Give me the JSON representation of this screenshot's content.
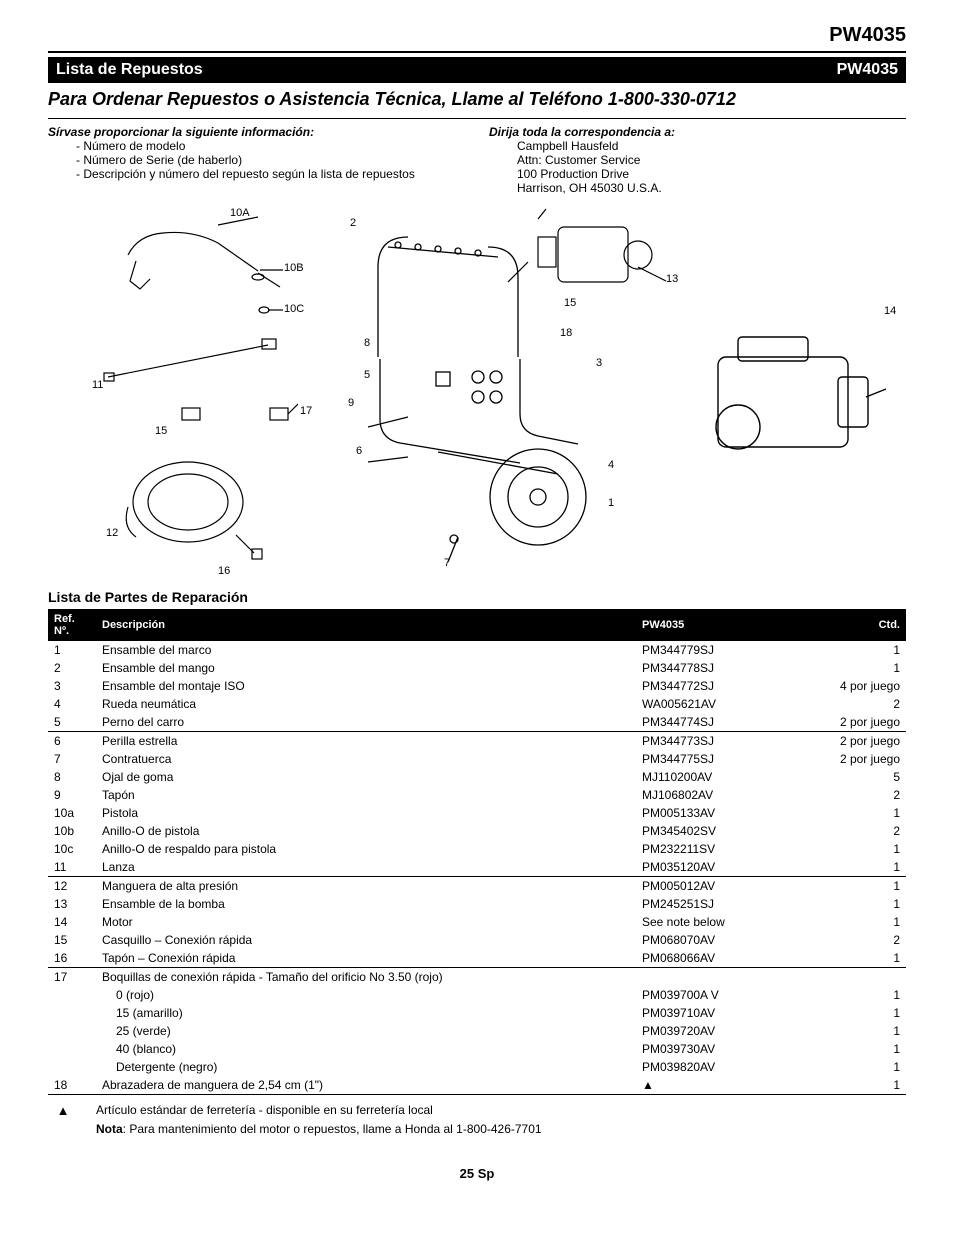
{
  "header": {
    "model": "PW4035"
  },
  "sectionbar": {
    "left": "Lista de Repuestos",
    "right": "PW4035"
  },
  "orderline": "Para Ordenar Repuestos o Asistencia Técnica, Llame al Teléfono 1-800-330-0712",
  "info": {
    "left_lead": "Sírvase proporcionar la siguiente información:",
    "left_items": [
      "- Número de modelo",
      "- Número de Serie (de haberlo)",
      "- Descripción y número del repuesto según la lista de repuestos"
    ],
    "right_lead": "Dirija toda la correspondencia a:",
    "right_items": [
      "Campbell Hausfeld",
      "Attn: Customer Service",
      "100 Production Drive",
      "Harrison, OH   45030   U.S.A."
    ]
  },
  "diagram_labels": {
    "l10A": "10A",
    "l10B": "10B",
    "l10C": "10C",
    "l11": "11",
    "l15a": "15",
    "l12": "12",
    "l16": "16",
    "l17": "17",
    "l2": "2",
    "l8": "8",
    "l5": "5",
    "l9": "9",
    "l6": "6",
    "l7": "7",
    "l3": "3",
    "l4": "4",
    "l1": "1",
    "l18": "18",
    "l15b": "15",
    "l13": "13",
    "l14": "14"
  },
  "table": {
    "title": "Lista de Partes de Reparación",
    "headers": {
      "ref": "Ref.\nNº.",
      "desc": "Descripción",
      "pn": "PW4035",
      "qty": "Ctd."
    },
    "rows": [
      {
        "r": "1",
        "d": "Ensamble del marco",
        "p": "PM344779SJ",
        "q": "1"
      },
      {
        "r": "2",
        "d": "Ensamble del mango",
        "p": "PM344778SJ",
        "q": "1"
      },
      {
        "r": "3",
        "d": "Ensamble del montaje ISO",
        "p": "PM344772SJ",
        "q": "4 por juego"
      },
      {
        "r": "4",
        "d": "Rueda neumática",
        "p": "WA005621AV",
        "q": "2"
      },
      {
        "r": "5",
        "d": "Perno del carro",
        "p": "PM344774SJ",
        "q": "2 por juego"
      },
      {
        "r": "6",
        "d": "Perilla estrella",
        "p": "PM344773SJ",
        "q": "2 por juego",
        "ruled": true
      },
      {
        "r": "7",
        "d": "Contratuerca",
        "p": "PM344775SJ",
        "q": "2 por juego"
      },
      {
        "r": "8",
        "d": "Ojal de goma",
        "p": "MJ110200AV",
        "q": "5"
      },
      {
        "r": "9",
        "d": "Tapón",
        "p": "MJ106802AV",
        "q": "2"
      },
      {
        "r": "10a",
        "d": "Pistola",
        "p": "PM005133AV",
        "q": "1"
      },
      {
        "r": "10b",
        "d": "Anillo-O de pistola",
        "p": "PM345402SV",
        "q": "2"
      },
      {
        "r": "10c",
        "d": "Anillo-O de respaldo para pistola",
        "p": "PM232211SV",
        "q": "1"
      },
      {
        "r": "11",
        "d": "Lanza",
        "p": "PM035120AV",
        "q": "1"
      },
      {
        "r": "12",
        "d": "Manguera de alta presión",
        "p": "PM005012AV",
        "q": "1",
        "ruled": true
      },
      {
        "r": "13",
        "d": "Ensamble de la bomba",
        "p": "PM245251SJ",
        "q": "1"
      },
      {
        "r": "14",
        "d": "Motor",
        "p": "See note below",
        "q": "1"
      },
      {
        "r": "15",
        "d": "Casquillo – Conexión rápida",
        "p": "PM068070AV",
        "q": "2"
      },
      {
        "r": "16",
        "d": "Tapón – Conexión rápida",
        "p": "PM068066AV",
        "q": "1"
      },
      {
        "r": "17",
        "d": "Boquillas de conexión rápida - Tamaño del orificio No 3.50 (rojo)",
        "p": "",
        "q": "",
        "ruled": true
      },
      {
        "r": "",
        "d": "0 (rojo)",
        "p": "PM039700A V",
        "q": "1",
        "sub": true
      },
      {
        "r": "",
        "d": "15 (amarillo)",
        "p": "PM039710AV",
        "q": "1",
        "sub": true
      },
      {
        "r": "",
        "d": "25 (verde)",
        "p": "PM039720AV",
        "q": "1",
        "sub": true
      },
      {
        "r": "",
        "d": "40 (blanco)",
        "p": "PM039730AV",
        "q": "1",
        "sub": true
      },
      {
        "r": "",
        "d": "Detergente (negro)",
        "p": "PM039820AV",
        "q": "1",
        "sub": true
      },
      {
        "r": "18",
        "d": "Abrazadera de manguera de 2,54 cm (1\")",
        "p": "▲",
        "q": "1"
      }
    ],
    "footnotes": [
      {
        "sym": "▲",
        "text": "Artículo estándar de ferretería - disponible en su ferretería local"
      },
      {
        "sym": "",
        "text_bold": "Nota",
        "text": ": Para mantenimiento del motor o repuestos, llame a Honda al 1-800-426-7701"
      }
    ]
  },
  "pagefoot": "25 Sp"
}
